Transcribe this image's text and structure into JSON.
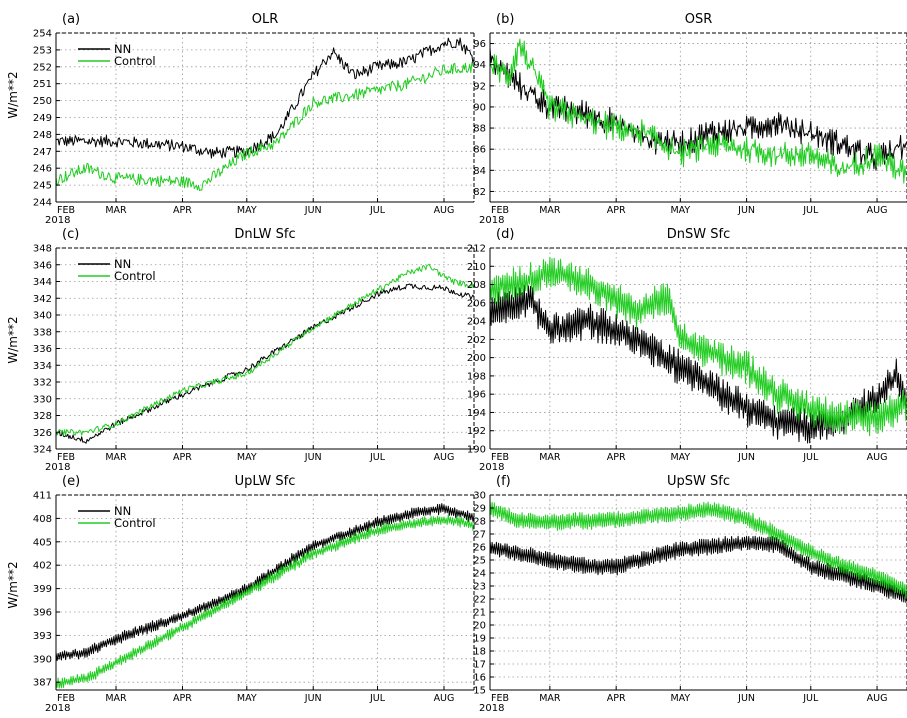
{
  "figure": {
    "ylabel": "W/m**2",
    "year": "2018",
    "months": [
      "FEB",
      "MAR",
      "APR",
      "MAY",
      "JUN",
      "JUL",
      "AUG"
    ],
    "colors": {
      "nn": "#000000",
      "control": "#22cc22",
      "grid": "#9a9a9a",
      "frame": "#000000"
    }
  },
  "chart_data": [
    {
      "type": "line",
      "id": "olr",
      "panel_label": "(a)",
      "title": "OLR",
      "ylabel": "W/m**2",
      "legend": [
        "NN",
        "Control"
      ],
      "legend_position": "top-left",
      "xlim": [
        "2018-02-01",
        "2018-08-15"
      ],
      "ylim": [
        244,
        254
      ],
      "yticks": [
        244,
        245,
        246,
        247,
        248,
        249,
        250,
        251,
        252,
        253,
        254
      ],
      "grid": true,
      "noise": 0.35,
      "cycle": 0.0,
      "series": [
        {
          "name": "NN",
          "color": "#000000",
          "x": [
            "2018-02-01",
            "2018-03-01",
            "2018-04-01",
            "2018-04-15",
            "2018-05-01",
            "2018-05-15",
            "2018-06-01",
            "2018-06-10",
            "2018-06-20",
            "2018-07-01",
            "2018-07-15",
            "2018-08-01",
            "2018-08-08",
            "2018-08-15"
          ],
          "y": [
            247.6,
            247.6,
            247.3,
            246.9,
            247.0,
            248.0,
            251.5,
            252.9,
            251.5,
            252.0,
            252.3,
            253.4,
            253.5,
            252.5
          ]
        },
        {
          "name": "Control",
          "color": "#22cc22",
          "x": [
            "2018-02-01",
            "2018-02-15",
            "2018-03-01",
            "2018-04-01",
            "2018-04-10",
            "2018-05-01",
            "2018-05-15",
            "2018-06-01",
            "2018-06-15",
            "2018-07-01",
            "2018-07-15",
            "2018-08-01",
            "2018-08-15"
          ],
          "y": [
            245.3,
            246.0,
            245.4,
            245.2,
            245.0,
            246.9,
            247.5,
            249.9,
            250.2,
            250.6,
            251.0,
            251.8,
            252.0
          ]
        }
      ]
    },
    {
      "type": "line",
      "id": "osr",
      "panel_label": "(b)",
      "title": "OSR",
      "ylabel": "",
      "legend": [],
      "legend_position": "",
      "xlim": [
        "2018-02-01",
        "2018-08-15"
      ],
      "ylim": [
        81,
        97
      ],
      "yticks": [
        82,
        84,
        86,
        88,
        90,
        92,
        94,
        96
      ],
      "grid": true,
      "noise": 0.8,
      "cycle": 0.6,
      "series": [
        {
          "name": "NN",
          "color": "#000000",
          "x": [
            "2018-02-01",
            "2018-02-15",
            "2018-03-01",
            "2018-03-15",
            "2018-04-01",
            "2018-04-15",
            "2018-05-01",
            "2018-05-15",
            "2018-06-01",
            "2018-06-15",
            "2018-07-01",
            "2018-07-15",
            "2018-08-01",
            "2018-08-15"
          ],
          "y": [
            94.5,
            92.0,
            90.0,
            89.5,
            88.5,
            87.0,
            86.5,
            87.5,
            88.0,
            88.5,
            87.5,
            86.5,
            85.0,
            86.5
          ]
        },
        {
          "name": "Control",
          "color": "#22cc22",
          "x": [
            "2018-02-01",
            "2018-02-10",
            "2018-02-15",
            "2018-03-01",
            "2018-03-15",
            "2018-04-01",
            "2018-04-15",
            "2018-05-01",
            "2018-05-15",
            "2018-06-01",
            "2018-06-15",
            "2018-07-01",
            "2018-07-15",
            "2018-08-01",
            "2018-08-15"
          ],
          "y": [
            94.0,
            93.0,
            96.0,
            90.0,
            89.0,
            88.0,
            87.5,
            85.5,
            86.5,
            86.0,
            85.5,
            85.5,
            84.0,
            85.5,
            83.5
          ]
        }
      ]
    },
    {
      "type": "line",
      "id": "dnlw",
      "panel_label": "(c)",
      "title": "DnLW Sfc",
      "ylabel": "W/m**2",
      "legend": [
        "NN",
        "Control"
      ],
      "legend_position": "top-left",
      "xlim": [
        "2018-02-01",
        "2018-08-15"
      ],
      "ylim": [
        324,
        348
      ],
      "yticks": [
        324,
        326,
        328,
        330,
        332,
        334,
        336,
        338,
        340,
        342,
        344,
        346,
        348
      ],
      "grid": true,
      "noise": 0.35,
      "cycle": 0.0,
      "series": [
        {
          "name": "NN",
          "color": "#000000",
          "x": [
            "2018-02-01",
            "2018-02-15",
            "2018-03-01",
            "2018-04-01",
            "2018-05-01",
            "2018-06-01",
            "2018-07-01",
            "2018-07-15",
            "2018-08-01",
            "2018-08-15"
          ],
          "y": [
            326.0,
            325.0,
            327.0,
            330.5,
            333.5,
            338.5,
            342.5,
            343.5,
            343.2,
            342.0
          ]
        },
        {
          "name": "Control",
          "color": "#22cc22",
          "x": [
            "2018-02-01",
            "2018-02-15",
            "2018-03-01",
            "2018-04-01",
            "2018-05-01",
            "2018-06-01",
            "2018-07-01",
            "2018-07-15",
            "2018-07-25",
            "2018-08-05",
            "2018-08-15"
          ],
          "y": [
            326.0,
            326.0,
            327.0,
            331.0,
            333.0,
            338.5,
            343.0,
            345.0,
            345.8,
            344.0,
            343.5
          ]
        }
      ]
    },
    {
      "type": "line",
      "id": "dnsw",
      "panel_label": "(d)",
      "title": "DnSW Sfc",
      "ylabel": "",
      "legend": [],
      "legend_position": "",
      "xlim": [
        "2018-02-01",
        "2018-08-15"
      ],
      "ylim": [
        190,
        212
      ],
      "yticks": [
        190,
        192,
        194,
        196,
        198,
        200,
        202,
        204,
        206,
        208,
        210,
        212
      ],
      "grid": true,
      "noise": 0.6,
      "cycle": 1.5,
      "series": [
        {
          "name": "NN",
          "color": "#000000",
          "x": [
            "2018-02-01",
            "2018-02-20",
            "2018-03-01",
            "2018-03-20",
            "2018-04-10",
            "2018-05-01",
            "2018-05-15",
            "2018-06-01",
            "2018-06-15",
            "2018-07-01",
            "2018-07-15",
            "2018-08-01",
            "2018-08-10",
            "2018-08-15"
          ],
          "y": [
            205.0,
            206.5,
            203.0,
            204.0,
            202.0,
            199.0,
            197.0,
            194.5,
            193.0,
            192.5,
            193.0,
            195.5,
            198.0,
            195.0
          ]
        },
        {
          "name": "Control",
          "color": "#22cc22",
          "x": [
            "2018-02-01",
            "2018-02-20",
            "2018-03-01",
            "2018-03-20",
            "2018-04-10",
            "2018-04-25",
            "2018-05-01",
            "2018-05-15",
            "2018-06-01",
            "2018-06-15",
            "2018-07-01",
            "2018-07-15",
            "2018-08-01",
            "2018-08-15"
          ],
          "y": [
            207.5,
            208.5,
            209.5,
            208.0,
            205.0,
            206.5,
            202.0,
            200.5,
            199.0,
            196.0,
            194.5,
            193.5,
            193.5,
            195.0
          ]
        }
      ]
    },
    {
      "type": "line",
      "id": "uplw",
      "panel_label": "(e)",
      "title": "UpLW Sfc",
      "ylabel": "W/m**2",
      "legend": [
        "NN",
        "Control"
      ],
      "legend_position": "top-left",
      "xlim": [
        "2018-02-01",
        "2018-08-15"
      ],
      "ylim": [
        386,
        411
      ],
      "yticks": [
        387,
        390,
        393,
        396,
        399,
        402,
        405,
        408,
        411
      ],
      "grid": true,
      "noise": 0.2,
      "cycle": 0.6,
      "series": [
        {
          "name": "NN",
          "color": "#000000",
          "x": [
            "2018-02-01",
            "2018-02-15",
            "2018-03-01",
            "2018-04-01",
            "2018-05-01",
            "2018-06-01",
            "2018-07-01",
            "2018-07-15",
            "2018-08-01",
            "2018-08-10",
            "2018-08-15"
          ],
          "y": [
            390.3,
            390.8,
            392.5,
            395.5,
            399.0,
            404.5,
            407.5,
            408.5,
            409.3,
            408.5,
            408.0
          ]
        },
        {
          "name": "Control",
          "color": "#22cc22",
          "x": [
            "2018-02-01",
            "2018-02-15",
            "2018-03-01",
            "2018-04-01",
            "2018-05-01",
            "2018-06-01",
            "2018-07-01",
            "2018-07-15",
            "2018-08-01",
            "2018-08-10",
            "2018-08-15"
          ],
          "y": [
            386.8,
            387.5,
            389.5,
            394.0,
            398.5,
            403.5,
            406.5,
            407.2,
            407.8,
            407.5,
            407.0
          ]
        }
      ]
    },
    {
      "type": "line",
      "id": "upsw",
      "panel_label": "(f)",
      "title": "UpSW Sfc",
      "ylabel": "",
      "legend": [],
      "legend_position": "",
      "xlim": [
        "2018-02-01",
        "2018-08-15"
      ],
      "ylim": [
        15,
        30
      ],
      "yticks": [
        15,
        16,
        17,
        18,
        19,
        20,
        21,
        22,
        23,
        24,
        25,
        26,
        27,
        28,
        29,
        30
      ],
      "grid": true,
      "noise": 0.08,
      "cycle": 0.6,
      "series": [
        {
          "name": "NN",
          "color": "#000000",
          "x": [
            "2018-02-01",
            "2018-03-01",
            "2018-03-20",
            "2018-04-01",
            "2018-05-01",
            "2018-06-01",
            "2018-06-15",
            "2018-07-01",
            "2018-07-15",
            "2018-08-01",
            "2018-08-15"
          ],
          "y": [
            26.0,
            25.0,
            24.5,
            24.5,
            25.8,
            26.3,
            26.2,
            24.5,
            23.9,
            23.0,
            22.2
          ]
        },
        {
          "name": "Control",
          "color": "#22cc22",
          "x": [
            "2018-02-01",
            "2018-02-15",
            "2018-03-01",
            "2018-04-01",
            "2018-05-01",
            "2018-05-15",
            "2018-06-01",
            "2018-06-15",
            "2018-07-01",
            "2018-07-15",
            "2018-08-01",
            "2018-08-15"
          ],
          "y": [
            29.0,
            28.0,
            27.9,
            28.1,
            28.6,
            28.9,
            28.2,
            27.0,
            25.6,
            24.6,
            23.7,
            22.6
          ]
        }
      ]
    }
  ]
}
